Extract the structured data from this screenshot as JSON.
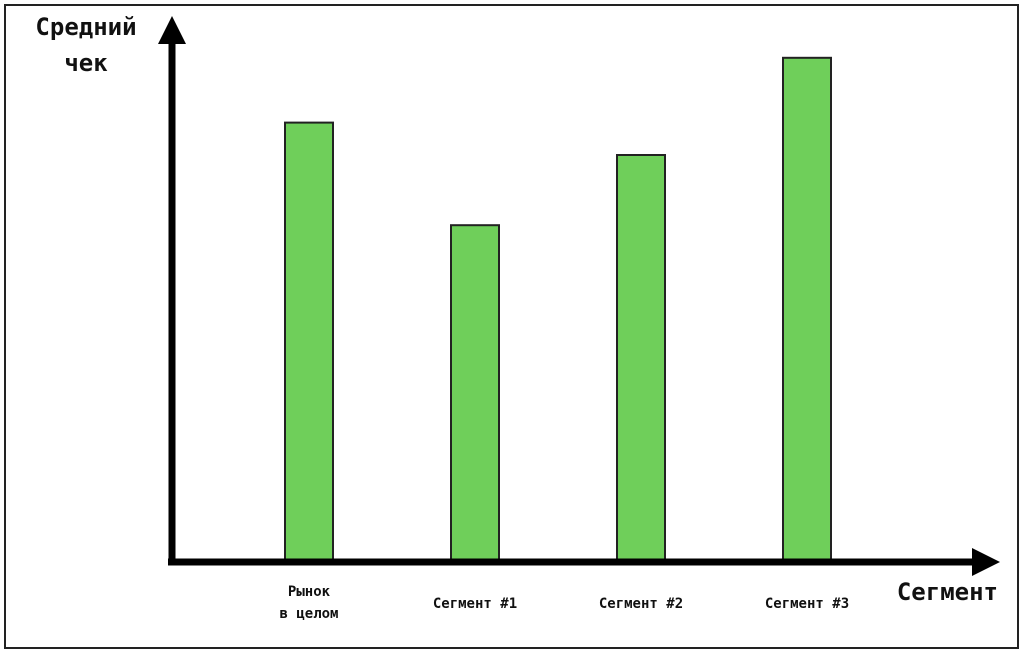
{
  "chart_data": {
    "type": "bar",
    "y_label": "Средний\nчек",
    "x_label": "Сегмент",
    "categories": [
      "Рынок\nв целом",
      "Сегмент #1",
      "Сегмент #2",
      "Сегмент #3"
    ],
    "values": [
      81,
      62,
      75,
      93
    ],
    "color": "#6fcf5a",
    "ylim": [
      0,
      100
    ]
  }
}
